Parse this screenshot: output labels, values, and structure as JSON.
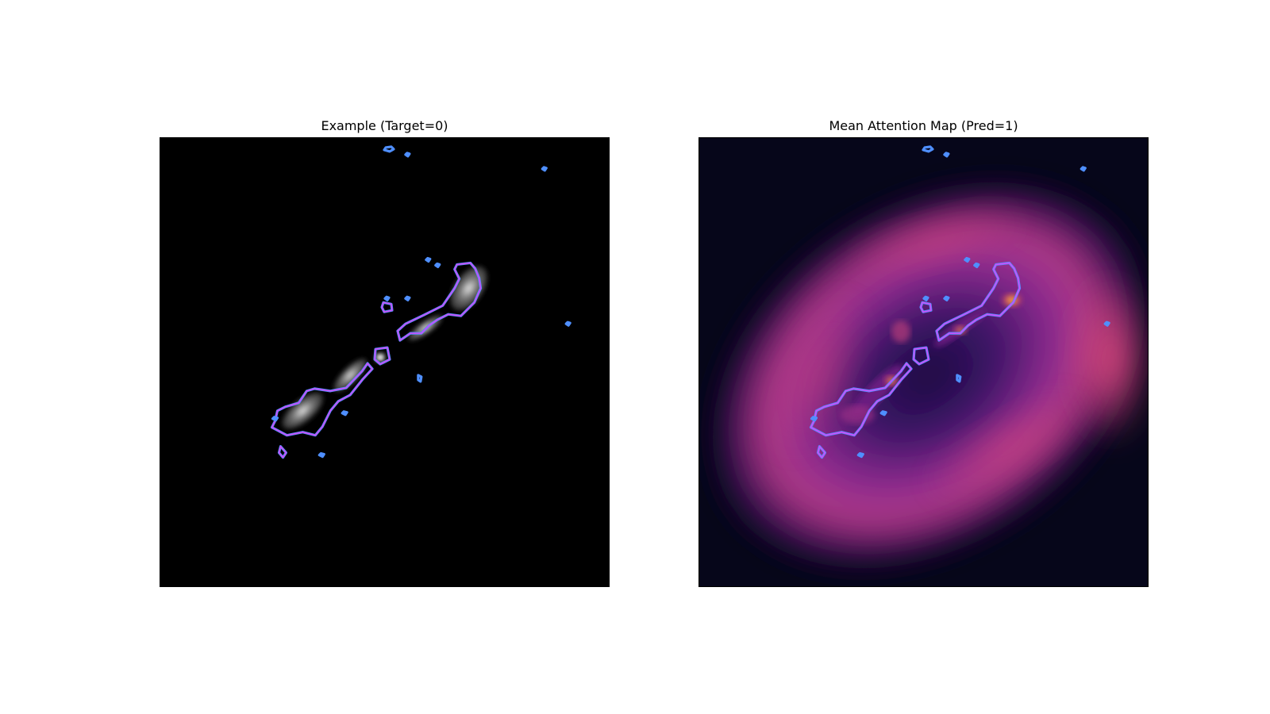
{
  "figure": {
    "left_panel": {
      "title": "Example (Target=0)"
    },
    "right_panel": {
      "title": "Mean Attention Map (Pred=1)"
    }
  },
  "colors": {
    "background": "#000000",
    "contour_outer": "#4f8fff",
    "contour_inner": "#d24bff",
    "heatmap_low": "#06061a",
    "heatmap_mid": "#8a2b93",
    "heatmap_high": "#fcffa4"
  }
}
